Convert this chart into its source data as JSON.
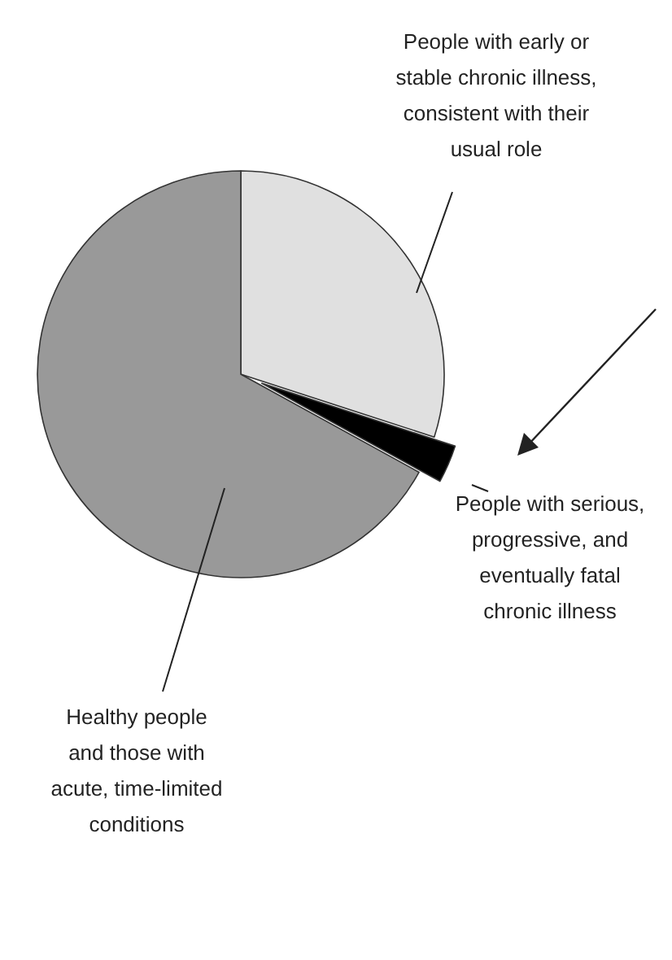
{
  "chart_data": {
    "type": "pie",
    "categories": [
      "People with early or stable chronic illness, consistent with their usual role",
      "People with serious, progressive, and eventually fatal chronic illness",
      "Healthy people and those with acute, time-limited conditions"
    ],
    "values": [
      30,
      3,
      67
    ],
    "colors": [
      "#e0e0e0",
      "#000000",
      "#999999"
    ]
  }
}
